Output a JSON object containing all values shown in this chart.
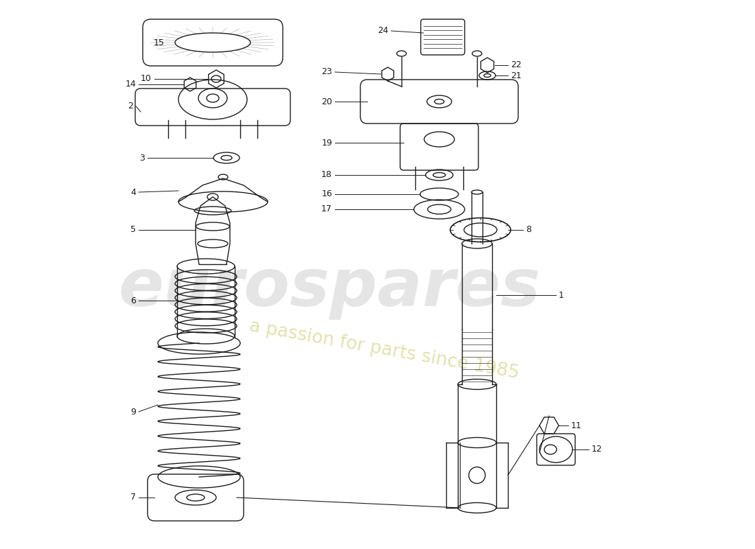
{
  "background_color": "#ffffff",
  "line_color": "#1a1a1a",
  "wm1": "eurospares",
  "wm2": "a passion for parts since 1985",
  "wm_c1": "#cccccc",
  "wm_c2": "#d8d890",
  "lw": 1.0
}
